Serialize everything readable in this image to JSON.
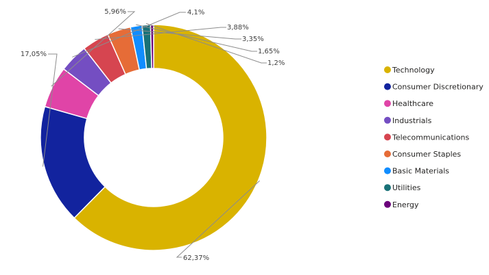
{
  "chart_data": {
    "type": "pie",
    "variant": "donut",
    "legend_position": "right",
    "categories": [
      "Technology",
      "Consumer Discretionary",
      "Healthcare",
      "Industrials",
      "Telecommunications",
      "Consumer Staples",
      "Basic Materials",
      "Utilities",
      "Energy"
    ],
    "values": [
      62.37,
      17.05,
      5.96,
      4.1,
      3.88,
      3.35,
      1.65,
      1.2,
      0.44
    ],
    "data_labels": [
      "62,37%",
      "17,05%",
      "5,96%",
      "4,1%",
      "3,88%",
      "3,35%",
      "1,65%",
      "1,2%",
      ""
    ],
    "colors": [
      "#D9B300",
      "#12239E",
      "#E044A7",
      "#744EC2",
      "#D64550",
      "#E66C37",
      "#118DFF",
      "#197278",
      "#6B007B"
    ]
  }
}
